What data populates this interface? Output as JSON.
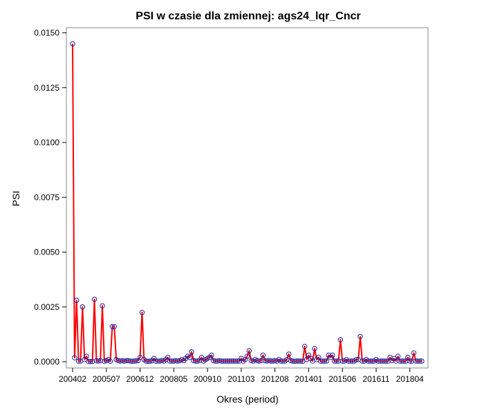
{
  "chart_data": {
    "type": "line",
    "title": "PSI w czasie dla zmiennej: ags24_lqr_Cncr",
    "xlabel": "Okres (period)",
    "ylabel": "PSI",
    "ylim": [
      0,
      0.0152
    ],
    "y_ticks": [
      "0.0000",
      "0.0025",
      "0.0050",
      "0.0075",
      "0.0100",
      "0.0125",
      "0.0150"
    ],
    "x_ticks": [
      "200402",
      "200507",
      "200612",
      "200805",
      "200910",
      "201103",
      "201208",
      "201401",
      "201506",
      "201611",
      "201804"
    ],
    "grid": false,
    "legend": "none",
    "line_color": "#ff0000",
    "marker_color": "#1f1f9f",
    "series": [
      {
        "values": [
          0.0145,
          0.00018,
          0.0028,
          3e-05,
          3e-05,
          0.0025,
          0.0001,
          0.00025,
          1e-05,
          1e-05,
          1e-05,
          0.00285,
          5e-05,
          3e-05,
          5e-05,
          0.00255,
          2e-05,
          5e-05,
          0.0001,
          2e-05,
          0.0016,
          0.0016,
          0.0001,
          5e-05,
          3e-05,
          5e-05,
          3e-05,
          5e-05,
          5e-05,
          3e-05,
          2e-05,
          3e-05,
          4e-05,
          5e-05,
          0.0002,
          0.00225,
          0.0001,
          3e-05,
          2e-05,
          3e-05,
          4e-05,
          0.00015,
          3e-05,
          3e-05,
          3e-05,
          6e-05,
          3e-05,
          0.0001,
          0.0002,
          3e-05,
          3e-05,
          3e-05,
          5e-05,
          3e-05,
          5e-05,
          0.0001,
          5e-05,
          0.00015,
          0.00025,
          0.0002,
          0.00045,
          5e-05,
          3e-05,
          3e-05,
          6e-05,
          0.0002,
          3e-05,
          0.0001,
          0.00015,
          0.0002,
          0.0003,
          5e-05,
          3e-05,
          3e-05,
          5e-05,
          3e-05,
          3e-05,
          3e-05,
          3e-05,
          3e-05,
          3e-05,
          3e-05,
          3e-05,
          3e-05,
          3e-05,
          0.00015,
          3e-05,
          0.0001,
          0.00025,
          0.0005,
          5e-05,
          3e-05,
          0.0001,
          5e-05,
          3e-05,
          5e-05,
          0.0003,
          5e-05,
          3e-05,
          6e-05,
          3e-05,
          3e-05,
          5e-05,
          3e-05,
          0.0001,
          3e-05,
          3e-05,
          3e-05,
          0.0001,
          0.00035,
          5e-05,
          3e-05,
          2e-05,
          3e-05,
          3e-05,
          3e-05,
          2e-05,
          0.0007,
          0.0001,
          0.0003,
          0.00015,
          3e-05,
          0.0006,
          0.0001,
          0.0002,
          3e-05,
          3e-05,
          3e-05,
          3e-05,
          0.0003,
          0.0002,
          0.0003,
          3e-05,
          3e-05,
          3e-05,
          0.001,
          3e-05,
          3e-05,
          0.0001,
          3e-05,
          3e-05,
          3e-05,
          3e-05,
          0.0001,
          0.0001,
          0.00115,
          3e-05,
          3e-05,
          0.0001,
          3e-05,
          3e-05,
          3e-05,
          3e-05,
          0.0001,
          3e-05,
          3e-05,
          3e-05,
          3e-05,
          3e-05,
          3e-05,
          0.0002,
          5e-05,
          0.00015,
          3e-05,
          0.00025,
          3e-05,
          3e-05,
          3e-05,
          3e-05,
          0.0002,
          3e-05,
          3e-05,
          0.0004,
          3e-05,
          3e-05,
          3e-05,
          3e-05
        ]
      }
    ]
  }
}
